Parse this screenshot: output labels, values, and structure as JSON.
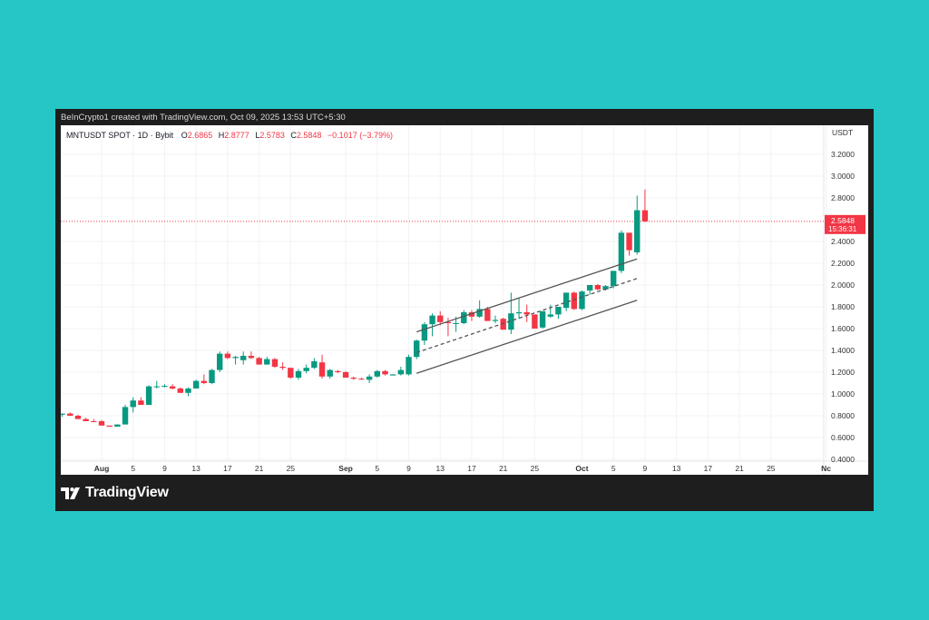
{
  "header": {
    "caption": "BeInCrypto1 created with TradingView.com, Oct 09, 2025 13:53 UTC+5:30"
  },
  "legend": {
    "symbol": "MNTUSDT SPOT · 1D · Bybit",
    "open_label": "O",
    "open": "2.6865",
    "high_label": "H",
    "high": "2.8777",
    "low_label": "L",
    "low": "2.5783",
    "close_label": "C",
    "close": "2.5848",
    "change": "−0.1017 (−3.79%)"
  },
  "price_axis": {
    "currency": "USDT",
    "current_price": "2.5848",
    "countdown": "15:36:31"
  },
  "brand": {
    "name": "TradingView",
    "icon": "tradingview-logo-icon"
  },
  "colors": {
    "up": "#089981",
    "down": "#f23645",
    "background": "#27c6c6",
    "frame": "#1e1e1e"
  },
  "chart_data": {
    "type": "candlestick",
    "title": "MNTUSDT SPOT · 1D · Bybit",
    "ylabel": "USDT",
    "ylim": [
      0.4,
      3.3
    ],
    "y_ticks": [
      "3.2000",
      "3.0000",
      "2.8000",
      "2.4000",
      "2.2000",
      "2.0000",
      "1.8000",
      "1.6000",
      "1.4000",
      "1.2000",
      "1.0000",
      "0.8000",
      "0.6000",
      "0.4000"
    ],
    "x_ticks": [
      {
        "label": "Aug",
        "day": 0,
        "bold": true
      },
      {
        "label": "5",
        "day": 4
      },
      {
        "label": "9",
        "day": 8
      },
      {
        "label": "13",
        "day": 12
      },
      {
        "label": "17",
        "day": 16
      },
      {
        "label": "21",
        "day": 20
      },
      {
        "label": "25",
        "day": 24
      },
      {
        "label": "Sep",
        "day": 31,
        "bold": true
      },
      {
        "label": "5",
        "day": 35
      },
      {
        "label": "9",
        "day": 39
      },
      {
        "label": "13",
        "day": 43
      },
      {
        "label": "17",
        "day": 47
      },
      {
        "label": "21",
        "day": 51
      },
      {
        "label": "25",
        "day": 55
      },
      {
        "label": "Oct",
        "day": 61,
        "bold": true
      },
      {
        "label": "5",
        "day": 65
      },
      {
        "label": "9",
        "day": 69
      },
      {
        "label": "13",
        "day": 73
      },
      {
        "label": "17",
        "day": 77
      },
      {
        "label": "21",
        "day": 81
      },
      {
        "label": "25",
        "day": 85
      },
      {
        "label": "Nc",
        "day": 92,
        "bold": true
      }
    ],
    "grid": true,
    "last_price_line": 2.5848,
    "candles": [
      {
        "day": -5,
        "o": 0.81,
        "h": 0.82,
        "l": 0.79,
        "c": 0.82
      },
      {
        "day": -4,
        "o": 0.82,
        "h": 0.83,
        "l": 0.8,
        "c": 0.8
      },
      {
        "day": -3,
        "o": 0.8,
        "h": 0.81,
        "l": 0.77,
        "c": 0.77
      },
      {
        "day": -2,
        "o": 0.77,
        "h": 0.78,
        "l": 0.75,
        "c": 0.75
      },
      {
        "day": -1,
        "o": 0.75,
        "h": 0.77,
        "l": 0.74,
        "c": 0.745
      },
      {
        "day": 0,
        "o": 0.75,
        "h": 0.76,
        "l": 0.71,
        "c": 0.71
      },
      {
        "day": 1,
        "o": 0.71,
        "h": 0.71,
        "l": 0.7,
        "c": 0.7
      },
      {
        "day": 2,
        "o": 0.7,
        "h": 0.72,
        "l": 0.7,
        "c": 0.72
      },
      {
        "day": 3,
        "o": 0.72,
        "h": 0.9,
        "l": 0.72,
        "c": 0.88
      },
      {
        "day": 4,
        "o": 0.88,
        "h": 0.97,
        "l": 0.83,
        "c": 0.94
      },
      {
        "day": 5,
        "o": 0.94,
        "h": 0.97,
        "l": 0.9,
        "c": 0.9
      },
      {
        "day": 6,
        "o": 0.9,
        "h": 1.08,
        "l": 0.9,
        "c": 1.07
      },
      {
        "day": 7,
        "o": 1.07,
        "h": 1.12,
        "l": 1.05,
        "c": 1.07
      },
      {
        "day": 8,
        "o": 1.07,
        "h": 1.09,
        "l": 1.06,
        "c": 1.075
      },
      {
        "day": 9,
        "o": 1.07,
        "h": 1.09,
        "l": 1.04,
        "c": 1.05
      },
      {
        "day": 10,
        "o": 1.05,
        "h": 1.06,
        "l": 1.01,
        "c": 1.01
      },
      {
        "day": 11,
        "o": 1.01,
        "h": 1.06,
        "l": 0.98,
        "c": 1.05
      },
      {
        "day": 12,
        "o": 1.05,
        "h": 1.13,
        "l": 1.05,
        "c": 1.12
      },
      {
        "day": 13,
        "o": 1.12,
        "h": 1.18,
        "l": 1.09,
        "c": 1.1
      },
      {
        "day": 14,
        "o": 1.1,
        "h": 1.23,
        "l": 1.09,
        "c": 1.22
      },
      {
        "day": 15,
        "o": 1.22,
        "h": 1.39,
        "l": 1.2,
        "c": 1.37
      },
      {
        "day": 16,
        "o": 1.37,
        "h": 1.39,
        "l": 1.32,
        "c": 1.33
      },
      {
        "day": 17,
        "o": 1.33,
        "h": 1.35,
        "l": 1.27,
        "c": 1.34
      },
      {
        "day": 18,
        "o": 1.31,
        "h": 1.39,
        "l": 1.27,
        "c": 1.35
      },
      {
        "day": 19,
        "o": 1.35,
        "h": 1.39,
        "l": 1.32,
        "c": 1.33
      },
      {
        "day": 20,
        "o": 1.33,
        "h": 1.34,
        "l": 1.27,
        "c": 1.27
      },
      {
        "day": 21,
        "o": 1.27,
        "h": 1.34,
        "l": 1.27,
        "c": 1.32
      },
      {
        "day": 22,
        "o": 1.32,
        "h": 1.33,
        "l": 1.24,
        "c": 1.25
      },
      {
        "day": 23,
        "o": 1.25,
        "h": 1.29,
        "l": 1.22,
        "c": 1.24
      },
      {
        "day": 24,
        "o": 1.24,
        "h": 1.24,
        "l": 1.14,
        "c": 1.15
      },
      {
        "day": 25,
        "o": 1.15,
        "h": 1.23,
        "l": 1.13,
        "c": 1.21
      },
      {
        "day": 26,
        "o": 1.21,
        "h": 1.27,
        "l": 1.19,
        "c": 1.24
      },
      {
        "day": 27,
        "o": 1.24,
        "h": 1.33,
        "l": 1.23,
        "c": 1.3
      },
      {
        "day": 28,
        "o": 1.29,
        "h": 1.36,
        "l": 1.14,
        "c": 1.16
      },
      {
        "day": 29,
        "o": 1.16,
        "h": 1.23,
        "l": 1.14,
        "c": 1.22
      },
      {
        "day": 30,
        "o": 1.21,
        "h": 1.22,
        "l": 1.19,
        "c": 1.2
      },
      {
        "day": 31,
        "o": 1.2,
        "h": 1.21,
        "l": 1.15,
        "c": 1.15
      },
      {
        "day": 32,
        "o": 1.15,
        "h": 1.16,
        "l": 1.13,
        "c": 1.14
      },
      {
        "day": 33,
        "o": 1.14,
        "h": 1.15,
        "l": 1.13,
        "c": 1.135
      },
      {
        "day": 34,
        "o": 1.13,
        "h": 1.18,
        "l": 1.1,
        "c": 1.16
      },
      {
        "day": 35,
        "o": 1.16,
        "h": 1.22,
        "l": 1.15,
        "c": 1.21
      },
      {
        "day": 36,
        "o": 1.21,
        "h": 1.22,
        "l": 1.17,
        "c": 1.18
      },
      {
        "day": 37,
        "o": 1.17,
        "h": 1.18,
        "l": 1.17,
        "c": 1.18
      },
      {
        "day": 38,
        "o": 1.18,
        "h": 1.25,
        "l": 1.17,
        "c": 1.22
      },
      {
        "day": 39,
        "o": 1.18,
        "h": 1.36,
        "l": 1.17,
        "c": 1.34
      },
      {
        "day": 40,
        "o": 1.34,
        "h": 1.5,
        "l": 1.32,
        "c": 1.49
      },
      {
        "day": 41,
        "o": 1.49,
        "h": 1.66,
        "l": 1.45,
        "c": 1.64
      },
      {
        "day": 42,
        "o": 1.64,
        "h": 1.74,
        "l": 1.53,
        "c": 1.72
      },
      {
        "day": 43,
        "o": 1.72,
        "h": 1.76,
        "l": 1.63,
        "c": 1.66
      },
      {
        "day": 44,
        "o": 1.66,
        "h": 1.7,
        "l": 1.53,
        "c": 1.65
      },
      {
        "day": 45,
        "o": 1.65,
        "h": 1.71,
        "l": 1.57,
        "c": 1.65
      },
      {
        "day": 46,
        "o": 1.65,
        "h": 1.77,
        "l": 1.64,
        "c": 1.75
      },
      {
        "day": 47,
        "o": 1.75,
        "h": 1.77,
        "l": 1.67,
        "c": 1.71
      },
      {
        "day": 48,
        "o": 1.71,
        "h": 1.86,
        "l": 1.7,
        "c": 1.78
      },
      {
        "day": 49,
        "o": 1.78,
        "h": 1.8,
        "l": 1.67,
        "c": 1.67
      },
      {
        "day": 50,
        "o": 1.67,
        "h": 1.72,
        "l": 1.65,
        "c": 1.68
      },
      {
        "day": 51,
        "o": 1.69,
        "h": 1.7,
        "l": 1.59,
        "c": 1.59
      },
      {
        "day": 52,
        "o": 1.59,
        "h": 1.93,
        "l": 1.55,
        "c": 1.74
      },
      {
        "day": 53,
        "o": 1.74,
        "h": 1.88,
        "l": 1.69,
        "c": 1.75
      },
      {
        "day": 54,
        "o": 1.75,
        "h": 1.82,
        "l": 1.66,
        "c": 1.73
      },
      {
        "day": 55,
        "o": 1.73,
        "h": 1.73,
        "l": 1.6,
        "c": 1.6
      },
      {
        "day": 56,
        "o": 1.61,
        "h": 1.76,
        "l": 1.6,
        "c": 1.76
      },
      {
        "day": 57,
        "o": 1.71,
        "h": 1.82,
        "l": 1.7,
        "c": 1.73
      },
      {
        "day": 58,
        "o": 1.73,
        "h": 1.8,
        "l": 1.69,
        "c": 1.8
      },
      {
        "day": 59,
        "o": 1.79,
        "h": 1.93,
        "l": 1.76,
        "c": 1.93
      },
      {
        "day": 60,
        "o": 1.93,
        "h": 1.94,
        "l": 1.77,
        "c": 1.78
      },
      {
        "day": 61,
        "o": 1.78,
        "h": 1.95,
        "l": 1.77,
        "c": 1.94
      },
      {
        "day": 62,
        "o": 1.95,
        "h": 2.0,
        "l": 1.91,
        "c": 2.0
      },
      {
        "day": 63,
        "o": 2.0,
        "h": 2.01,
        "l": 1.95,
        "c": 1.96
      },
      {
        "day": 64,
        "o": 1.96,
        "h": 2.0,
        "l": 1.95,
        "c": 1.99
      },
      {
        "day": 65,
        "o": 1.99,
        "h": 2.13,
        "l": 1.97,
        "c": 2.13
      },
      {
        "day": 66,
        "o": 2.13,
        "h": 2.5,
        "l": 2.11,
        "c": 2.48
      },
      {
        "day": 67,
        "o": 2.48,
        "h": 2.48,
        "l": 2.27,
        "c": 2.32
      },
      {
        "day": 68,
        "o": 2.3,
        "h": 2.82,
        "l": 2.28,
        "c": 2.6865
      },
      {
        "day": 69,
        "o": 2.6865,
        "h": 2.8777,
        "l": 2.5783,
        "c": 2.5848
      }
    ],
    "annotations": [
      {
        "type": "trendline",
        "name": "channel-upper",
        "from": {
          "day": 40,
          "price": 1.57
        },
        "to": {
          "day": 68,
          "price": 2.24
        }
      },
      {
        "type": "trendline",
        "name": "channel-mid",
        "style": "dashed",
        "from": {
          "day": 40,
          "price": 1.38
        },
        "to": {
          "day": 68,
          "price": 2.06
        }
      },
      {
        "type": "trendline",
        "name": "channel-lower",
        "from": {
          "day": 40,
          "price": 1.19
        },
        "to": {
          "day": 68,
          "price": 1.86
        }
      }
    ]
  }
}
